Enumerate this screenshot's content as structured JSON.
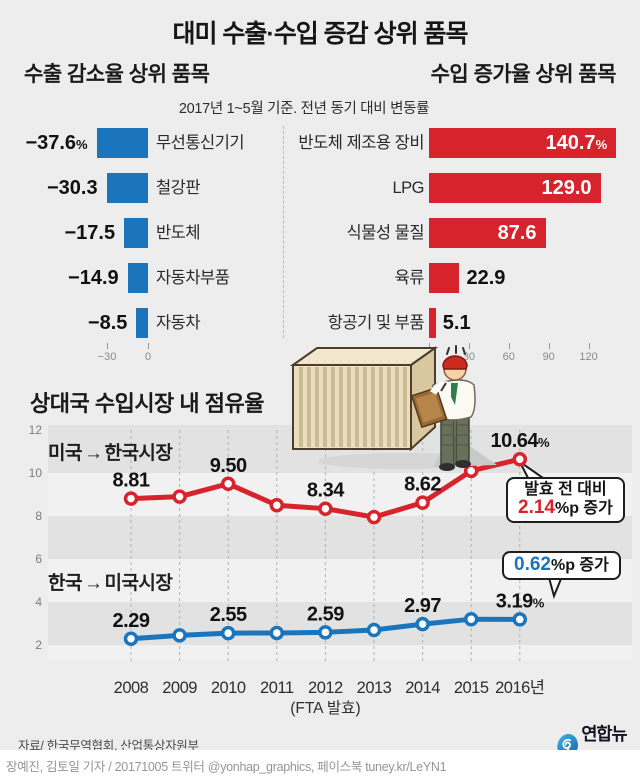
{
  "title": "대미 수출·수입 증감 상위 품목",
  "subtitle": "2017년 1~5월 기준. 전년 동기 대비 변동률",
  "colors": {
    "export_blue": "#1b75bc",
    "import_red": "#d7232b",
    "band_dark": "#e2e2e2",
    "band_light": "#f1f1f1",
    "background": "#ededed"
  },
  "chart_data": [
    {
      "id": "export-decline",
      "type": "bar",
      "orientation": "horizontal-left",
      "title": "수출 감소율 상위 품목",
      "unit": "%",
      "categories": [
        "무선통신기기",
        "철강판",
        "반도체",
        "자동차부품",
        "자동차"
      ],
      "values": [
        -37.6,
        -30.3,
        -17.5,
        -14.9,
        -8.5
      ],
      "value_labels": [
        "−37.6",
        "−30.3",
        "−17.5",
        "−14.9",
        "−8.5"
      ],
      "value_suffixes": [
        "%",
        "",
        "",
        "",
        ""
      ],
      "bar_color": "#1b75bc",
      "xlim": [
        -40,
        0
      ],
      "axis_ticks": [
        {
          "value": -30,
          "label": "−30"
        },
        {
          "value": 0,
          "label": "0"
        }
      ]
    },
    {
      "id": "import-growth",
      "type": "bar",
      "orientation": "horizontal-right",
      "title": "수입 증가율 상위 품목",
      "unit": "%",
      "categories": [
        "반도체 제조용 장비",
        "LPG",
        "식물성 물질",
        "육류",
        "항공기 및 부품"
      ],
      "values": [
        140.7,
        129.0,
        87.6,
        22.9,
        5.1
      ],
      "value_labels": [
        "140.7",
        "129.0",
        "87.6",
        "22.9",
        "5.1"
      ],
      "value_suffixes": [
        "%",
        "",
        "",
        "",
        ""
      ],
      "bar_color": "#d7232b",
      "xlim": [
        0,
        150
      ],
      "axis_ticks": [
        {
          "value": 0,
          "label": "0"
        },
        {
          "value": 30,
          "label": "30"
        },
        {
          "value": 60,
          "label": "60"
        },
        {
          "value": 90,
          "label": "90"
        },
        {
          "value": 120,
          "label": "120"
        }
      ]
    },
    {
      "id": "market-share",
      "type": "line",
      "title": "상대국 수입시장 내 점유율",
      "x": [
        "2008",
        "2009",
        "2010",
        "2011",
        "2012",
        "2013",
        "2014",
        "2015",
        "2016년"
      ],
      "x_note": {
        "label": "(FTA 발효)",
        "x_index": 4
      },
      "ylim": [
        2,
        12
      ],
      "yticks": [
        12,
        10,
        8,
        6,
        4,
        2
      ],
      "grid": "vertical-dashed",
      "series": [
        {
          "name": "미국 → 한국시장",
          "legend": {
            "origin": "미국",
            "arrow": "→",
            "market": "한국시장"
          },
          "color": "#d7232b",
          "values": [
            8.81,
            8.9,
            9.5,
            8.5,
            8.34,
            7.95,
            8.62,
            10.1,
            10.64
          ],
          "point_labels": [
            {
              "x_index": 0,
              "text": "8.81",
              "suffix": ""
            },
            {
              "x_index": 2,
              "text": "9.50",
              "suffix": ""
            },
            {
              "x_index": 4,
              "text": "8.34",
              "suffix": ""
            },
            {
              "x_index": 6,
              "text": "8.62",
              "suffix": ""
            },
            {
              "x_index": 8,
              "text": "10.64",
              "suffix": "%"
            }
          ],
          "callout": {
            "line1": "발효 전 대비",
            "value": "2.14",
            "suffix": "%p 증가"
          }
        },
        {
          "name": "한국 → 미국시장",
          "legend": {
            "origin": "한국",
            "arrow": "→",
            "market": "미국시장"
          },
          "color": "#1b75bc",
          "values": [
            2.29,
            2.45,
            2.55,
            2.56,
            2.59,
            2.7,
            2.97,
            3.2,
            3.19
          ],
          "point_labels": [
            {
              "x_index": 0,
              "text": "2.29",
              "suffix": ""
            },
            {
              "x_index": 2,
              "text": "2.55",
              "suffix": ""
            },
            {
              "x_index": 4,
              "text": "2.59",
              "suffix": ""
            },
            {
              "x_index": 6,
              "text": "2.97",
              "suffix": ""
            },
            {
              "x_index": 8,
              "text": "3.19",
              "suffix": "%"
            }
          ],
          "callout": {
            "line1": "",
            "value": "0.62",
            "suffix": "%p 증가"
          }
        }
      ]
    }
  ],
  "footer": {
    "source": "자료/ 한국무역협회, 산업통상자원부",
    "logo_text": "연합뉴스",
    "credit": "장예진, 김토일 기자 / 20171005 트위터 @yonhap_graphics, 페이스북 tuney.kr/LeYN1"
  }
}
